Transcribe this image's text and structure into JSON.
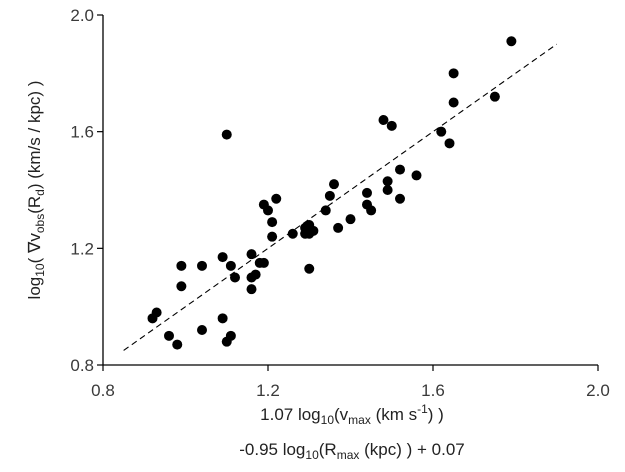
{
  "chart_data": {
    "type": "scatter",
    "title": "",
    "xlabel": {
      "line1": {
        "a": "1.07 log",
        "sub1": "10",
        "b": "(v",
        "sub2": "max",
        "c": " (km s",
        "sup": "-1",
        "d": ") )"
      },
      "line2": {
        "a": "-0.95 log",
        "sub1": "10",
        "b": "(R",
        "sub2": "max",
        "c": " (kpc) ) + 0.07"
      }
    },
    "ylabel": {
      "a": "log",
      "sub1": "10",
      "b": "( ∇v",
      "sub2": "obs",
      "c": "(R",
      "sub3": "d",
      "d": ")  (km/s / kpc) )"
    },
    "xlim": [
      0.8,
      2.0
    ],
    "ylim": [
      0.8,
      2.0
    ],
    "x_ticks": [
      "0.8",
      "1.2",
      "1.6",
      "2.0"
    ],
    "y_ticks": [
      "0.8",
      "1.2",
      "1.6",
      "2.0"
    ],
    "grid": false,
    "legend": "none",
    "marker_color": "#000000",
    "trend_line": {
      "style": "dashed",
      "x": [
        0.85,
        1.9
      ],
      "y": [
        0.85,
        1.9
      ]
    },
    "series": [
      {
        "points": [
          [
            0.92,
            0.96
          ],
          [
            0.93,
            0.98
          ],
          [
            0.96,
            0.9
          ],
          [
            0.98,
            0.87
          ],
          [
            0.99,
            1.07
          ],
          [
            0.99,
            1.14
          ],
          [
            1.04,
            0.92
          ],
          [
            1.04,
            1.14
          ],
          [
            1.09,
            0.96
          ],
          [
            1.09,
            1.17
          ],
          [
            1.1,
            0.88
          ],
          [
            1.11,
            0.9
          ],
          [
            1.11,
            1.14
          ],
          [
            1.1,
            1.59
          ],
          [
            1.12,
            1.1
          ],
          [
            1.16,
            1.06
          ],
          [
            1.16,
            1.1
          ],
          [
            1.16,
            1.18
          ],
          [
            1.17,
            1.11
          ],
          [
            1.18,
            1.15
          ],
          [
            1.19,
            1.15
          ],
          [
            1.19,
            1.35
          ],
          [
            1.2,
            1.33
          ],
          [
            1.21,
            1.24
          ],
          [
            1.21,
            1.29
          ],
          [
            1.22,
            1.37
          ],
          [
            1.26,
            1.25
          ],
          [
            1.29,
            1.25
          ],
          [
            1.29,
            1.27
          ],
          [
            1.3,
            1.25
          ],
          [
            1.3,
            1.28
          ],
          [
            1.3,
            1.13
          ],
          [
            1.31,
            1.26
          ],
          [
            1.34,
            1.33
          ],
          [
            1.35,
            1.38
          ],
          [
            1.36,
            1.42
          ],
          [
            1.37,
            1.27
          ],
          [
            1.4,
            1.3
          ],
          [
            1.44,
            1.35
          ],
          [
            1.44,
            1.39
          ],
          [
            1.45,
            1.33
          ],
          [
            1.48,
            1.64
          ],
          [
            1.49,
            1.4
          ],
          [
            1.49,
            1.43
          ],
          [
            1.5,
            1.62
          ],
          [
            1.52,
            1.37
          ],
          [
            1.52,
            1.47
          ],
          [
            1.56,
            1.45
          ],
          [
            1.62,
            1.6
          ],
          [
            1.64,
            1.56
          ],
          [
            1.65,
            1.7
          ],
          [
            1.65,
            1.8
          ],
          [
            1.75,
            1.72
          ],
          [
            1.79,
            1.91
          ]
        ]
      }
    ]
  }
}
